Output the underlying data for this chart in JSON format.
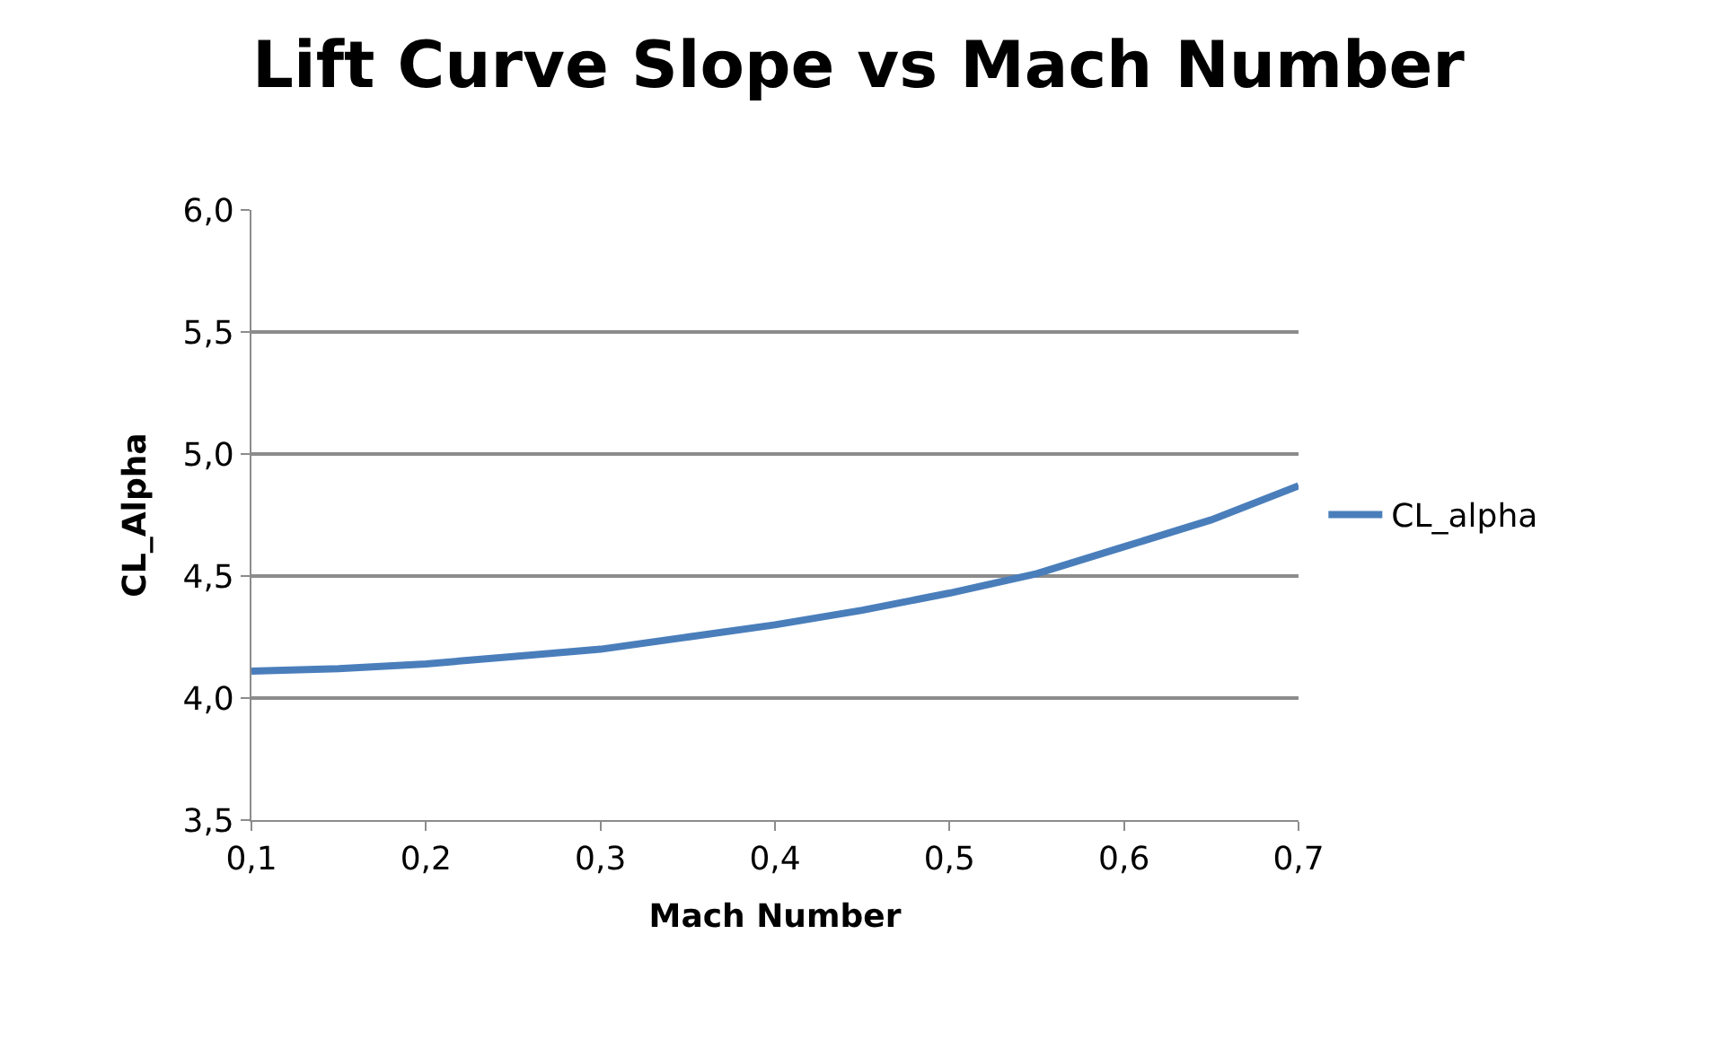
{
  "chart_data": {
    "type": "line",
    "title": "Lift Curve Slope vs Mach Number",
    "xlabel": "Mach Number",
    "ylabel": "CL_Alpha",
    "x": [
      0.1,
      0.15,
      0.2,
      0.25,
      0.3,
      0.35,
      0.4,
      0.45,
      0.5,
      0.55,
      0.6,
      0.65,
      0.7
    ],
    "series": [
      {
        "name": "CL_alpha",
        "color": "#4a7ebb",
        "values": [
          4.11,
          4.12,
          4.14,
          4.17,
          4.2,
          4.25,
          4.3,
          4.36,
          4.43,
          4.51,
          4.62,
          4.73,
          4.87
        ]
      }
    ],
    "xlim": [
      0.1,
      0.7
    ],
    "xticks": [
      {
        "value": 0.1,
        "label": "0,1"
      },
      {
        "value": 0.2,
        "label": "0,2"
      },
      {
        "value": 0.3,
        "label": "0,3"
      },
      {
        "value": 0.4,
        "label": "0,4"
      },
      {
        "value": 0.5,
        "label": "0,5"
      },
      {
        "value": 0.6,
        "label": "0,6"
      },
      {
        "value": 0.7,
        "label": "0,7"
      }
    ],
    "ylim": [
      3.5,
      6.0
    ],
    "yticks": [
      {
        "value": 3.5,
        "label": "3,5"
      },
      {
        "value": 4.0,
        "label": "4,0"
      },
      {
        "value": 4.5,
        "label": "4,5"
      },
      {
        "value": 5.0,
        "label": "5,0"
      },
      {
        "value": 5.5,
        "label": "5,5"
      },
      {
        "value": 6.0,
        "label": "6,0"
      }
    ],
    "grid": "y",
    "legend": "right",
    "marker": "none",
    "line_style": "solid"
  }
}
